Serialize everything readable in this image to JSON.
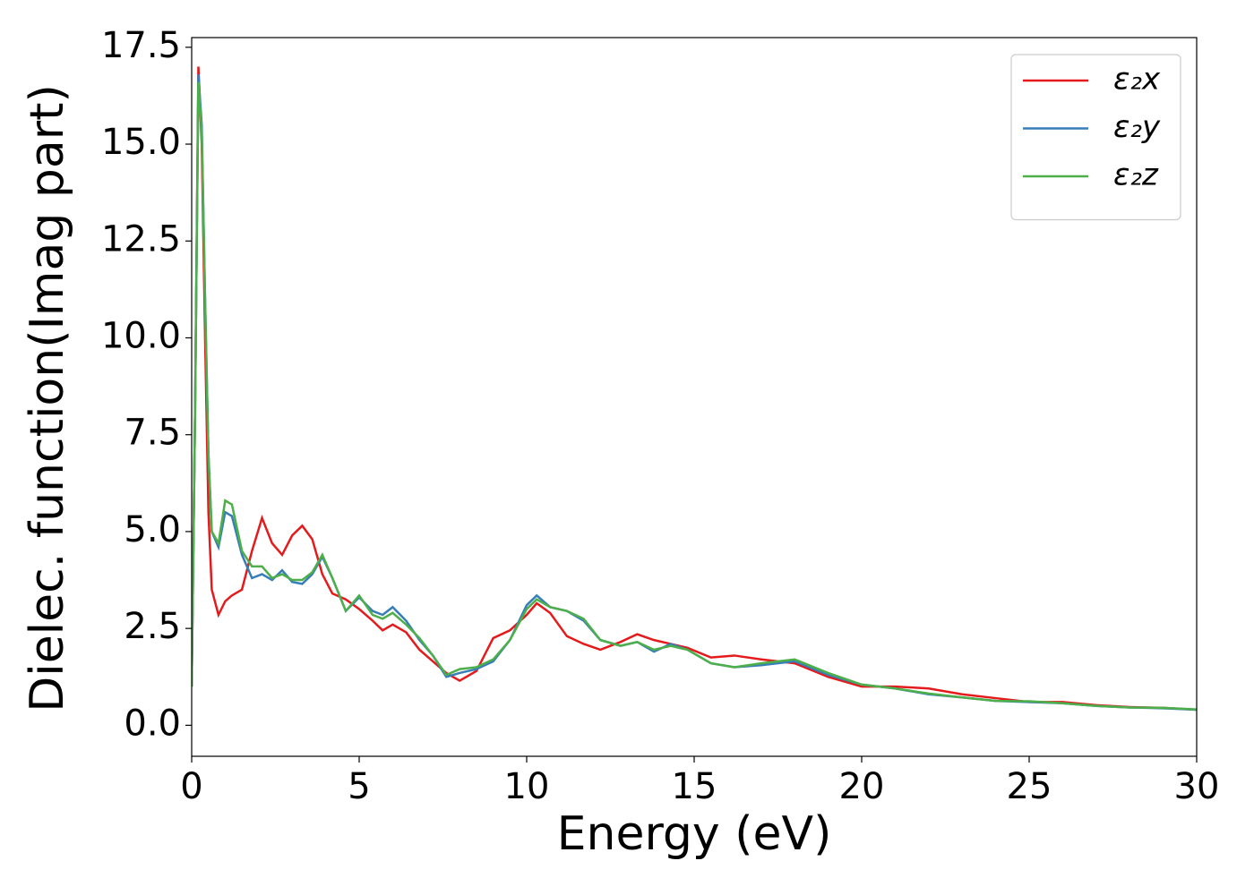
{
  "chart_data": {
    "type": "line",
    "xlabel": "Energy (eV)",
    "ylabel": "Dielec. function(Imag part)",
    "x": [
      0,
      0.1,
      0.2,
      0.3,
      0.4,
      0.5,
      0.6,
      0.8,
      1.0,
      1.2,
      1.5,
      1.8,
      2.1,
      2.4,
      2.7,
      3.0,
      3.3,
      3.6,
      3.9,
      4.2,
      4.6,
      5.0,
      5.4,
      5.7,
      6.0,
      6.4,
      6.8,
      7.2,
      7.6,
      8.0,
      8.5,
      9.0,
      9.5,
      10.0,
      10.3,
      10.7,
      11.2,
      11.7,
      12.2,
      12.8,
      13.3,
      13.8,
      14.3,
      14.8,
      15.5,
      16.2,
      17.0,
      18.0,
      19.0,
      20.0,
      21.0,
      22.0,
      23.0,
      24.0,
      25.0,
      26.0,
      27.0,
      28.0,
      29.0,
      30.0
    ],
    "series": [
      {
        "name": "ε₂x",
        "color": "#e41a1c",
        "values": [
          1.0,
          8,
          17.0,
          15,
          10,
          5.5,
          3.5,
          2.85,
          3.2,
          3.35,
          3.5,
          4.5,
          5.35,
          4.7,
          4.4,
          4.9,
          5.15,
          4.8,
          3.9,
          3.4,
          3.25,
          3.0,
          2.7,
          2.45,
          2.6,
          2.4,
          1.95,
          1.65,
          1.35,
          1.15,
          1.4,
          2.25,
          2.45,
          2.85,
          3.15,
          2.9,
          2.3,
          2.1,
          1.95,
          2.15,
          2.35,
          2.2,
          2.1,
          2.0,
          1.75,
          1.8,
          1.7,
          1.6,
          1.25,
          1.0,
          1.0,
          0.95,
          0.8,
          0.7,
          0.6,
          0.6,
          0.52,
          0.47,
          0.45,
          0.4
        ]
      },
      {
        "name": "ε₂y",
        "color": "#377eb8",
        "values": [
          1.0,
          8,
          16.8,
          15.5,
          11,
          7,
          5,
          4.6,
          5.5,
          5.4,
          4.4,
          3.8,
          3.9,
          3.75,
          4.0,
          3.7,
          3.65,
          3.9,
          4.35,
          3.8,
          2.95,
          3.3,
          2.95,
          2.85,
          3.05,
          2.7,
          2.2,
          1.8,
          1.25,
          1.35,
          1.45,
          1.65,
          2.2,
          3.1,
          3.35,
          3.05,
          2.95,
          2.7,
          2.2,
          2.05,
          2.15,
          1.9,
          2.1,
          1.95,
          1.6,
          1.5,
          1.55,
          1.65,
          1.3,
          1.05,
          0.95,
          0.8,
          0.72,
          0.63,
          0.6,
          0.57,
          0.5,
          0.46,
          0.44,
          0.4
        ]
      },
      {
        "name": "ε₂z",
        "color": "#4daf4a",
        "values": [
          1.0,
          8,
          16.6,
          15.3,
          11,
          7,
          5,
          4.7,
          5.8,
          5.7,
          4.5,
          4.1,
          4.1,
          3.8,
          3.9,
          3.75,
          3.75,
          3.95,
          4.4,
          3.8,
          2.95,
          3.35,
          2.85,
          2.75,
          2.9,
          2.6,
          2.25,
          1.8,
          1.3,
          1.45,
          1.5,
          1.7,
          2.2,
          3.0,
          3.25,
          3.05,
          2.95,
          2.75,
          2.2,
          2.05,
          2.15,
          1.95,
          2.05,
          1.95,
          1.6,
          1.5,
          1.6,
          1.7,
          1.35,
          1.05,
          0.95,
          0.82,
          0.72,
          0.63,
          0.62,
          0.57,
          0.5,
          0.46,
          0.45,
          0.41
        ]
      }
    ],
    "xlim": [
      0,
      30
    ],
    "ylim": [
      -0.8,
      17.75
    ],
    "xticks": [
      0,
      5,
      10,
      15,
      20,
      25,
      30
    ],
    "yticks": [
      {
        "value": 0,
        "label": "0.0"
      },
      2.5,
      {
        "value": 5,
        "label": "5.0"
      },
      7.5,
      {
        "value": 10,
        "label": "10.0"
      },
      12.5,
      {
        "value": 15,
        "label": "15.0"
      },
      17.5
    ],
    "legend": "upper right",
    "grid": false
  }
}
